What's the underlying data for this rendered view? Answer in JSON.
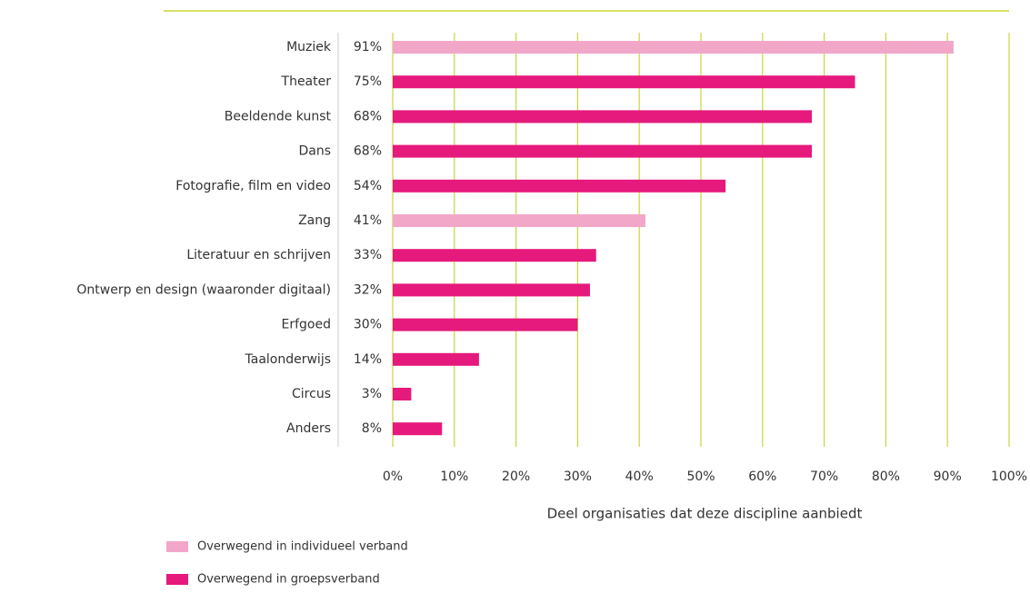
{
  "chart_data": {
    "type": "bar",
    "orientation": "horizontal",
    "categories": [
      "Muziek",
      "Theater",
      "Beeldende kunst",
      "Dans",
      "Fotografie, film en video",
      "Zang",
      "Literatuur en schrijven",
      "Ontwerp en design (waaronder digitaal)",
      "Erfgoed",
      "Taalonderwijs",
      "Circus",
      "Anders"
    ],
    "series": [
      {
        "name": "Overwegend in individueel verband",
        "color": "#f2a7c9",
        "values": [
          91,
          null,
          null,
          null,
          null,
          41,
          null,
          null,
          null,
          null,
          null,
          null
        ],
        "value_labels": [
          "91%",
          null,
          null,
          null,
          null,
          "41%",
          null,
          null,
          null,
          null,
          null,
          null
        ]
      },
      {
        "name": "Overwegend in groepsverband",
        "color": "#e6197c",
        "values": [
          null,
          75,
          68,
          68,
          54,
          null,
          33,
          32,
          30,
          14,
          3,
          8
        ],
        "value_labels": [
          null,
          "75%",
          "68%",
          "68%",
          "54%",
          null,
          "33%",
          "32%",
          "30%",
          "14%",
          "3%",
          "8%"
        ]
      }
    ],
    "xlabel": "Deel organisaties dat deze discipline aanbiedt",
    "xlim": [
      0,
      100
    ],
    "xticks": [
      {
        "value": 0,
        "label": "0%"
      },
      {
        "value": 10,
        "label": "10%"
      },
      {
        "value": 20,
        "label": "20%"
      },
      {
        "value": 30,
        "label": "30%"
      },
      {
        "value": 40,
        "label": "40%"
      },
      {
        "value": 50,
        "label": "50%"
      },
      {
        "value": 60,
        "label": "60%"
      },
      {
        "value": 70,
        "label": "70%"
      },
      {
        "value": 80,
        "label": "80%"
      },
      {
        "value": 90,
        "label": "90%"
      },
      {
        "value": 100,
        "label": "100%"
      }
    ],
    "grid": true,
    "grid_color": "#cbd63a",
    "legend": "bottom-left"
  }
}
